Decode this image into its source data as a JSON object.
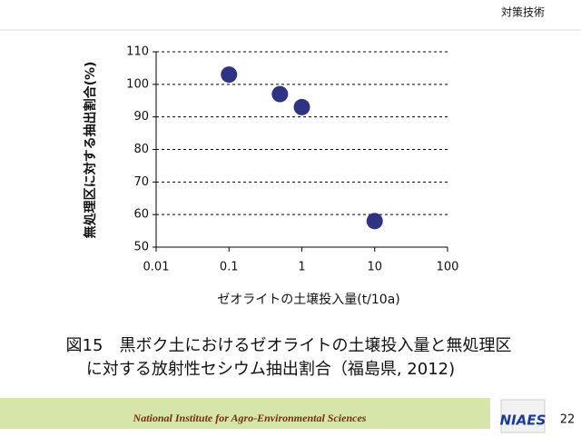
{
  "chart_data": {
    "type": "scatter",
    "y_label": "無処理区に対する抽出割合(%)",
    "x_label": "ゼオライトの土壌投入量(t/10a)",
    "x": [
      0.1,
      0.5,
      1,
      10
    ],
    "values": [
      103,
      97,
      93,
      58
    ],
    "color": "#2e3383",
    "x_scale": "log",
    "xlim": [
      0.01,
      100
    ],
    "xticks": [
      0.01,
      0.1,
      1,
      10,
      100
    ],
    "ylim": [
      50,
      110
    ],
    "yticks": [
      50,
      60,
      70,
      80,
      90,
      100,
      110
    ],
    "grid": true
  },
  "slide": {
    "section": "対策技術",
    "caption": [
      "図15　黒ボク土におけるゼオライトの土壌投入量と無処理区",
      "に対する放射性セシウム抽出割合（福島県, 2012)"
    ],
    "footer": "National Institute for Agro-Environmental Sciences",
    "logo": "NIAES",
    "page": "22"
  }
}
